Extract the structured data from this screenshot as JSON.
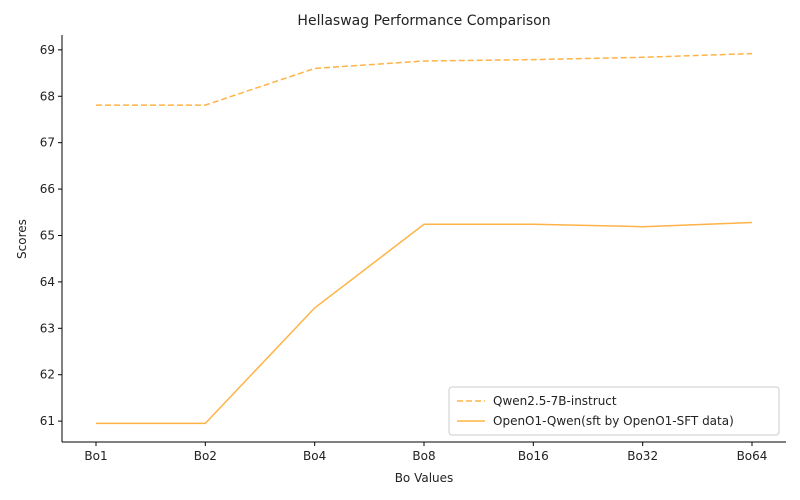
{
  "chart_data": {
    "type": "line",
    "title": "Hellaswag Performance Comparison",
    "xlabel": "Bo Values",
    "ylabel": "Scores",
    "categories": [
      "Bo1",
      "Bo2",
      "Bo4",
      "Bo8",
      "Bo16",
      "Bo32",
      "Bo64"
    ],
    "ylim": [
      60.55,
      69.32
    ],
    "yticks": [
      61,
      62,
      63,
      64,
      65,
      66,
      67,
      68,
      69
    ],
    "grid": false,
    "legend_position": "lower-right",
    "series": [
      {
        "name": "Qwen2.5-7B-instruct",
        "style": "dashed",
        "color": "#ffb347",
        "values": [
          67.81,
          67.81,
          68.6,
          68.76,
          68.79,
          68.84,
          68.92
        ]
      },
      {
        "name": "OpenO1-Qwen(sft by OpenO1-SFT data)",
        "style": "solid",
        "color": "#ffb347",
        "values": [
          60.95,
          60.95,
          63.44,
          65.24,
          65.24,
          65.19,
          65.28
        ]
      }
    ]
  }
}
